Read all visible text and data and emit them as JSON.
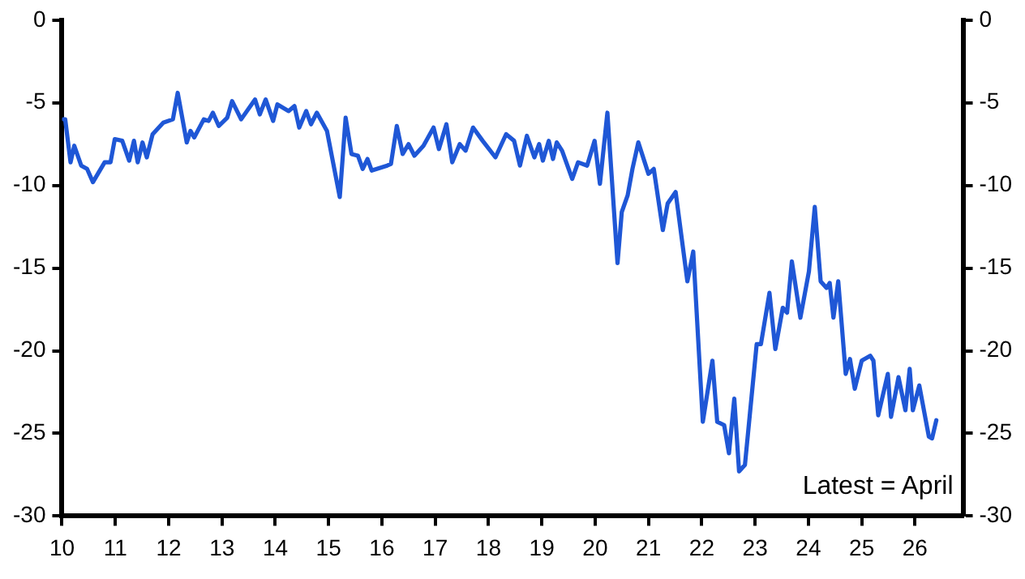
{
  "chart_data": {
    "type": "line",
    "annotations": [
      "Latest = April"
    ],
    "xlim": [
      10,
      26.9
    ],
    "xticks": [
      10,
      11,
      12,
      13,
      14,
      15,
      16,
      17,
      18,
      19,
      20,
      21,
      22,
      23,
      24,
      25,
      26
    ],
    "ylim": [
      -30,
      0
    ],
    "yticks": [
      -30,
      -25,
      -20,
      -15,
      -10,
      -5,
      0
    ],
    "y2lim": [
      -30,
      0
    ],
    "y2ticks": [
      -30,
      -25,
      -20,
      -15,
      -10,
      -5,
      0
    ],
    "grid": false,
    "legend": false,
    "marker": "none",
    "line_style": "solid",
    "series": [
      {
        "color": "#1f57d6",
        "x": [
          10.03,
          10.06,
          10.16,
          10.23,
          10.36,
          10.47,
          10.58,
          10.8,
          10.91,
          10.99,
          11.13,
          11.26,
          11.35,
          11.42,
          11.51,
          11.59,
          11.7,
          11.9,
          12.08,
          12.17,
          12.34,
          12.41,
          12.48,
          12.66,
          12.75,
          12.83,
          12.94,
          13.1,
          13.19,
          13.36,
          13.62,
          13.71,
          13.82,
          13.96,
          14.04,
          14.25,
          14.36,
          14.45,
          14.58,
          14.67,
          14.78,
          14.97,
          15.21,
          15.32,
          15.43,
          15.55,
          15.64,
          15.73,
          15.81,
          16.1,
          16.17,
          16.28,
          16.39,
          16.5,
          16.61,
          16.78,
          16.97,
          17.07,
          17.21,
          17.32,
          17.46,
          17.57,
          17.71,
          17.89,
          18.13,
          18.33,
          18.48,
          18.59,
          18.72,
          18.86,
          18.95,
          19.02,
          19.13,
          19.21,
          19.28,
          19.38,
          19.57,
          19.68,
          19.85,
          19.99,
          20.09,
          20.23,
          20.42,
          20.5,
          20.61,
          20.7,
          20.81,
          21.0,
          21.1,
          21.27,
          21.36,
          21.51,
          21.73,
          21.84,
          22.02,
          22.2,
          22.29,
          22.42,
          22.51,
          22.61,
          22.7,
          22.81,
          23.03,
          23.11,
          23.27,
          23.38,
          23.52,
          23.6,
          23.69,
          23.85,
          24.01,
          24.12,
          24.23,
          24.34,
          24.4,
          24.47,
          24.56,
          24.7,
          24.78,
          24.87,
          25.0,
          25.16,
          25.22,
          25.31,
          25.49,
          25.55,
          25.69,
          25.82,
          25.9,
          25.96,
          26.08,
          26.26,
          26.32,
          26.4
        ],
        "values": [
          -6.0,
          -6.0,
          -8.6,
          -7.6,
          -8.8,
          -9.0,
          -9.8,
          -8.6,
          -8.6,
          -7.2,
          -7.3,
          -8.5,
          -7.3,
          -8.6,
          -7.4,
          -8.3,
          -6.9,
          -6.2,
          -6.0,
          -4.4,
          -7.4,
          -6.7,
          -7.1,
          -6.0,
          -6.1,
          -5.6,
          -6.4,
          -5.9,
          -4.9,
          -6.0,
          -4.8,
          -5.7,
          -4.8,
          -6.1,
          -5.1,
          -5.5,
          -5.2,
          -6.5,
          -5.5,
          -6.3,
          -5.6,
          -6.7,
          -10.7,
          -5.9,
          -8.1,
          -8.2,
          -9.0,
          -8.4,
          -9.1,
          -8.8,
          -8.7,
          -6.4,
          -8.1,
          -7.5,
          -8.2,
          -7.6,
          -6.5,
          -7.8,
          -6.3,
          -8.6,
          -7.5,
          -7.9,
          -6.5,
          -7.3,
          -8.3,
          -6.9,
          -7.3,
          -8.8,
          -7.0,
          -8.3,
          -7.5,
          -8.5,
          -7.3,
          -8.4,
          -7.4,
          -7.9,
          -9.6,
          -8.6,
          -8.8,
          -7.3,
          -9.9,
          -5.6,
          -14.7,
          -11.6,
          -10.6,
          -9.0,
          -7.4,
          -9.3,
          -9.0,
          -12.7,
          -11.1,
          -10.4,
          -15.8,
          -14.0,
          -24.3,
          -20.6,
          -24.3,
          -24.5,
          -26.2,
          -22.9,
          -27.3,
          -26.9,
          -19.6,
          -19.6,
          -16.5,
          -19.9,
          -17.4,
          -17.7,
          -14.6,
          -18.0,
          -15.2,
          -11.3,
          -15.8,
          -16.2,
          -15.9,
          -18.0,
          -15.8,
          -21.4,
          -20.5,
          -22.3,
          -20.6,
          -20.3,
          -20.6,
          -23.9,
          -21.4,
          -24.0,
          -21.6,
          -23.6,
          -21.1,
          -23.6,
          -22.1,
          -25.2,
          -25.3,
          -24.2
        ]
      }
    ]
  }
}
